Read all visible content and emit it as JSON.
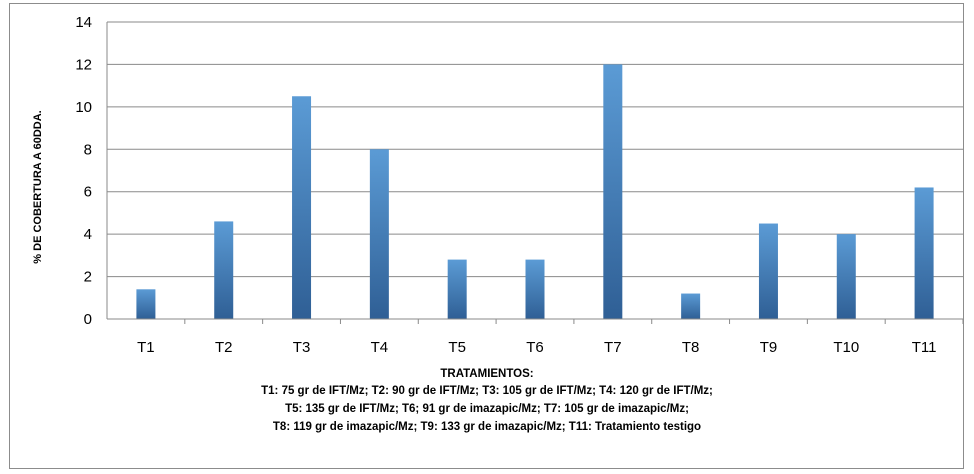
{
  "chart_data": {
    "type": "bar",
    "title": "",
    "ylabel": "% DE COBERTURA A 60DDA.",
    "xlabel_lines": [
      "TRATAMIENTOS:",
      "T1: 75 gr de IFT/Mz; T2: 90 gr de IFT/Mz; T3: 105 gr de IFT/Mz; T4: 120 gr de IFT/Mz;",
      "T5: 135 gr de IFT/Mz; T6; 91 gr de imazapic/Mz; T7: 105 gr de imazapic/Mz;",
      "T8: 119 gr de imazapic/Mz; T9: 133 gr de imazapic/Mz; T11: Tratamiento testigo"
    ],
    "categories": [
      "T1",
      "T2",
      "T3",
      "T4",
      "T5",
      "T6",
      "T7",
      "T8",
      "T9",
      "T10",
      "T11"
    ],
    "values": [
      1.4,
      4.6,
      10.5,
      8.0,
      2.8,
      2.8,
      12.0,
      1.2,
      4.5,
      4.0,
      6.2
    ],
    "ylim": [
      0,
      14
    ],
    "yticks": [
      "0",
      "2",
      "4",
      "6",
      "8",
      "10",
      "12",
      "14"
    ],
    "grid": true,
    "legend": "none",
    "bar_color_top": "#5b9bd5",
    "bar_color_bottom": "#2f5f95"
  }
}
